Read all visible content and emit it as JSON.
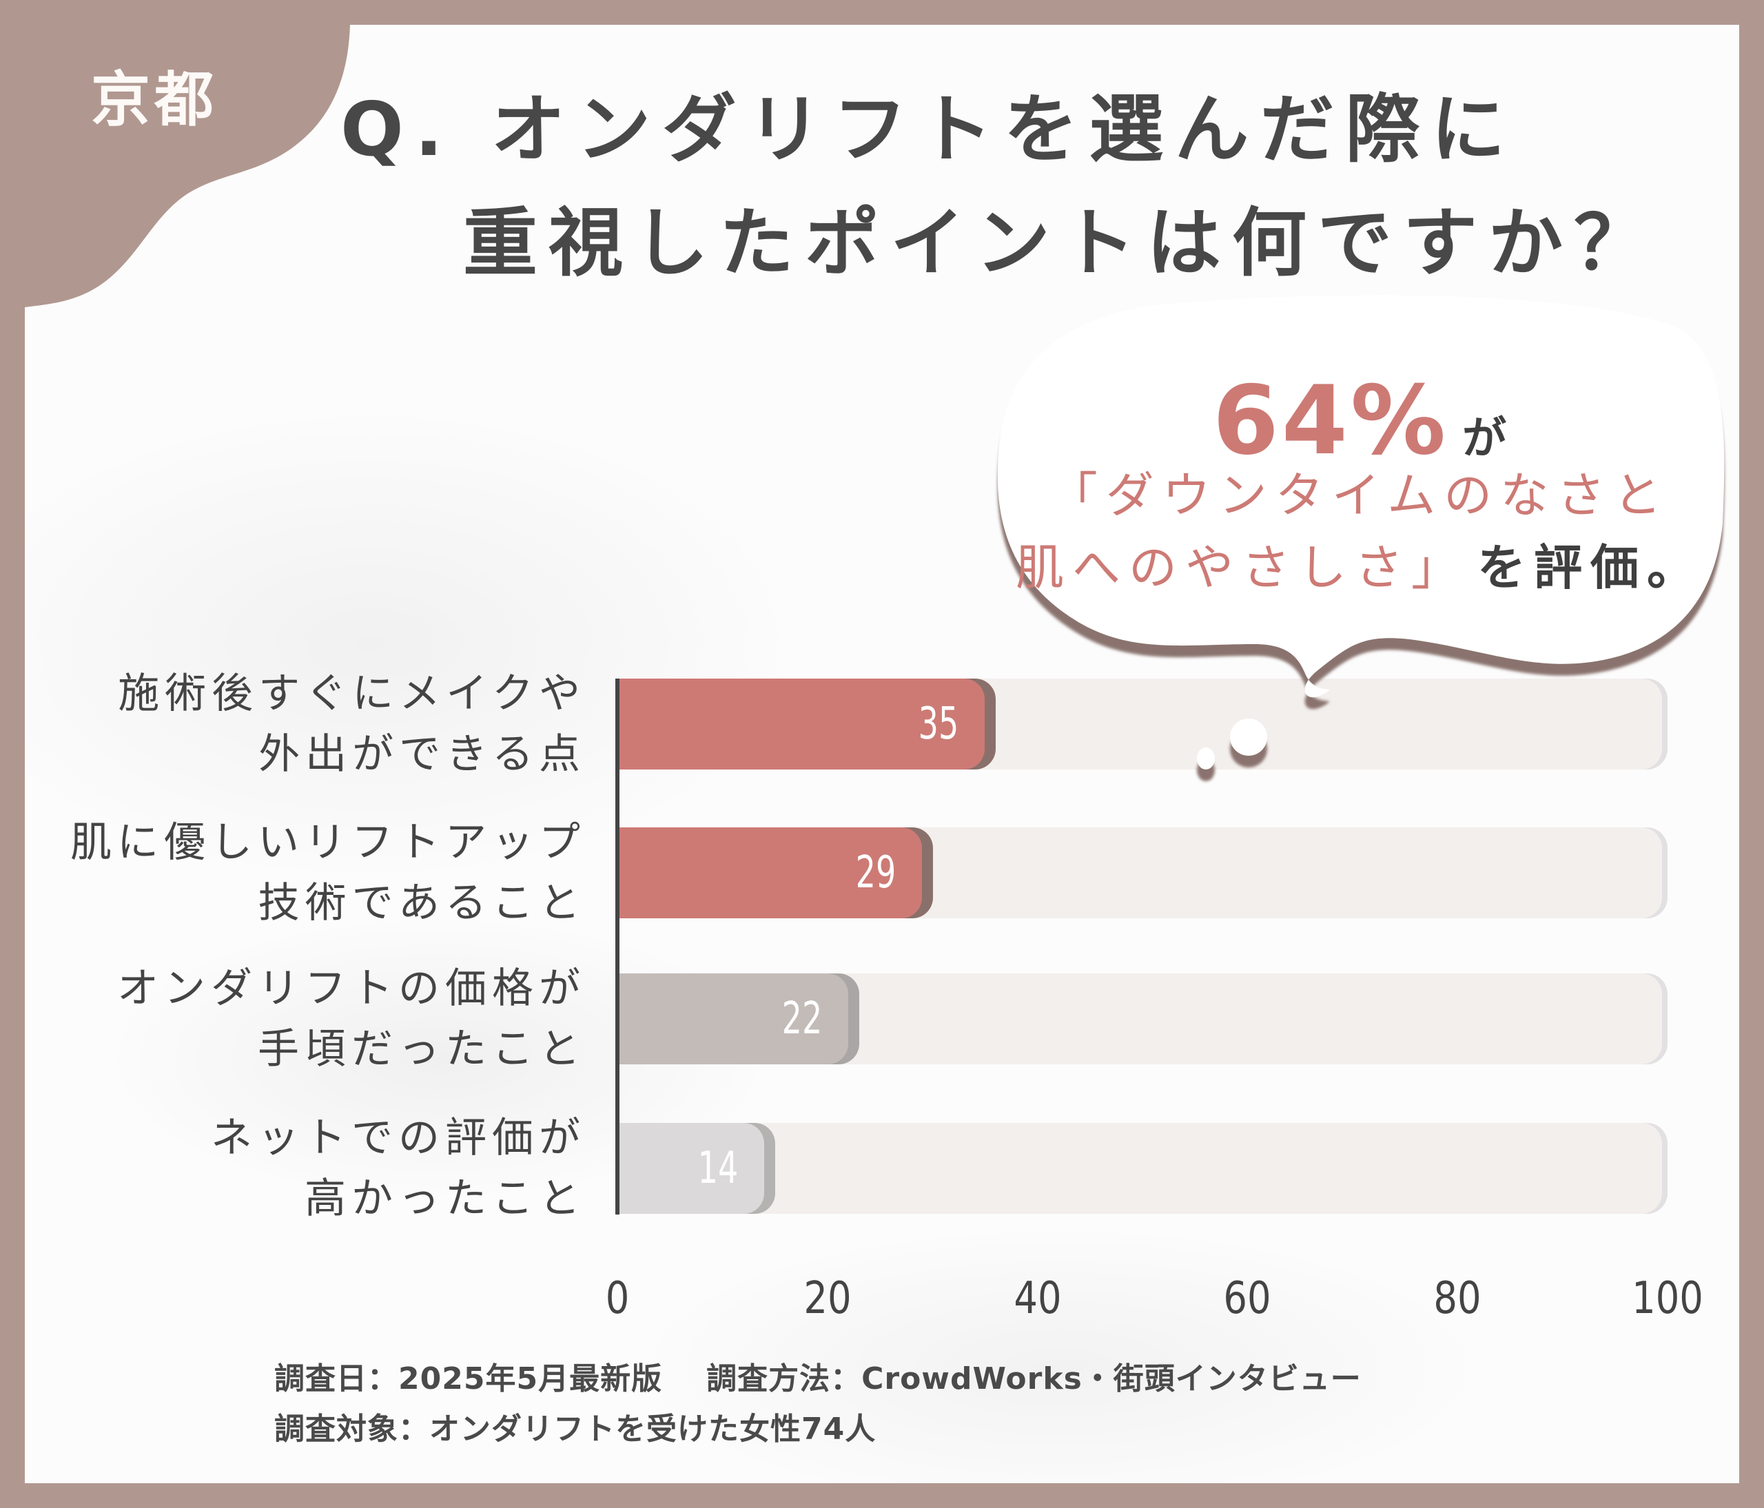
{
  "region_label": "京都",
  "title": {
    "line1": "Q. オンダリフトを選んだ際に",
    "line2": "重視したポイントは何ですか？"
  },
  "callout": {
    "percent": "64%",
    "percent_suffix": "が",
    "line2": "「ダウンタイムのなさと",
    "line3_accent": "肌へのやさしさ」",
    "line3_rest": "を評価。"
  },
  "colors": {
    "frame": "#b09890",
    "accent": "#cd7a75",
    "accent_shadow": "#8a706b",
    "grey_bar": "#c2bbb8",
    "grey_bar_shadow": "#a9a6a5",
    "light_bar": "#dcd9da",
    "light_bar_shadow": "#b5b3b2",
    "track": "#f3efed",
    "text": "#444444"
  },
  "chart_data": {
    "type": "bar",
    "orientation": "horizontal",
    "title": "Q. オンダリフトを選んだ際に重視したポイントは何ですか？",
    "categories": [
      "施術後すぐにメイクや外出ができる点",
      "肌に優しいリフトアップ技術であること",
      "オンダリフトの価格が手頃だったこと",
      "ネットでの評価が高かったこと"
    ],
    "values": [
      35,
      29,
      22,
      14
    ],
    "xlabel": "",
    "ylabel": "",
    "xlim": [
      0,
      100
    ],
    "xticks": [
      0,
      20,
      40,
      60,
      80,
      100
    ],
    "grid": false,
    "legend": null,
    "annotation": "64%が「ダウンタイムのなさと肌へのやさしさ」を評価。"
  },
  "chart": {
    "rows": [
      {
        "label_line1": "施術後すぐにメイクや",
        "label_line2": "外出ができる点",
        "value": "35"
      },
      {
        "label_line1": "肌に優しいリフトアップ",
        "label_line2": "技術であること",
        "value": "29"
      },
      {
        "label_line1": "オンダリフトの価格が",
        "label_line2": "手頃だったこと",
        "value": "22"
      },
      {
        "label_line1": "ネットでの評価が",
        "label_line2": "高かったこと",
        "value": "14"
      }
    ],
    "ticks": [
      "0",
      "20",
      "40",
      "60",
      "80",
      "100"
    ]
  },
  "footer": {
    "survey_date": "調査日：2025年5月最新版",
    "survey_method": "調査方法：CrowdWorks・街頭インタビュー",
    "survey_target": "調査対象：オンダリフトを受けた女性74人"
  }
}
